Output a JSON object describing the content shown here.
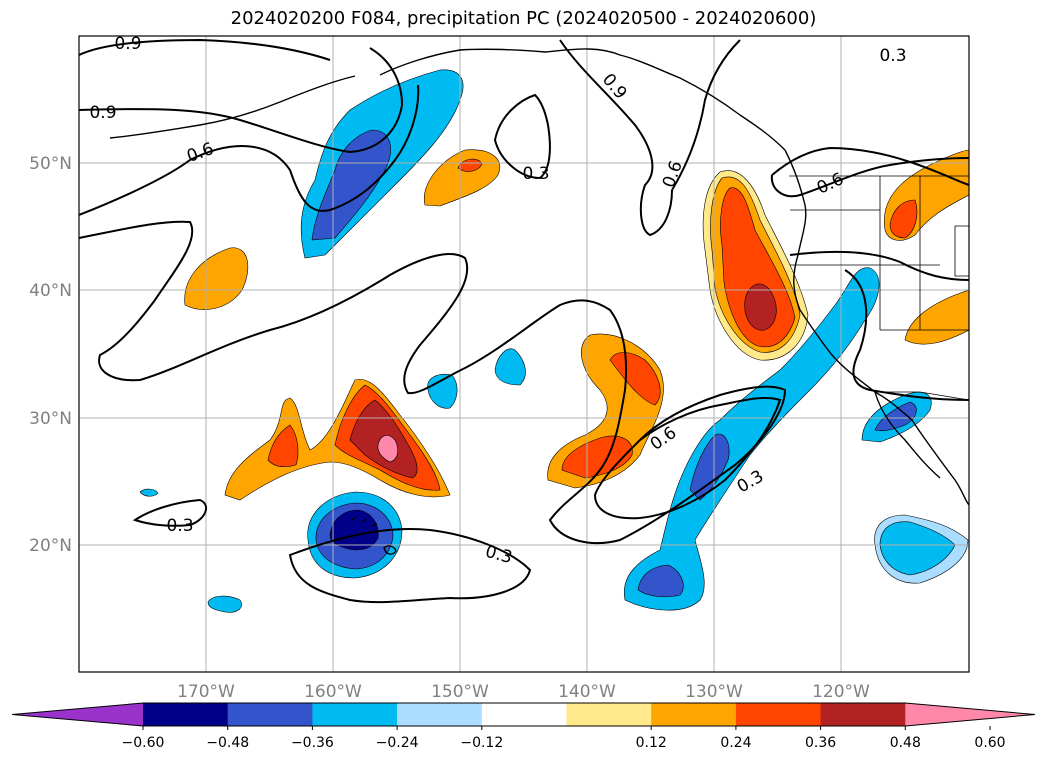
{
  "title": "2024020200 F084, precipitation PC (2024020500 - 2024020600)",
  "latitude_labels": [
    "50°N",
    "40°N",
    "30°N",
    "20°N"
  ],
  "longitude_labels": [
    "170°W",
    "160°W",
    "150°W",
    "140°W",
    "130°W",
    "120°W"
  ],
  "contour_labels": [
    "0.9",
    "0.9",
    "0.6",
    "0.9",
    "0.6",
    "0.3",
    "0.3",
    "0.6",
    "0.6",
    "0.3",
    "0.3",
    "0.3"
  ],
  "colorbar": {
    "ticks": [
      "−0.60",
      "−0.48",
      "−0.36",
      "−0.24",
      "−0.12",
      "0.12",
      "0.24",
      "0.36",
      "0.48",
      "0.60"
    ],
    "colors": [
      "#9933cc",
      "#000088",
      "#3355cc",
      "#00bbf2",
      "#aaddff",
      "#ffffff",
      "#ffe98a",
      "#ffa500",
      "#ff4500",
      "#b22222",
      "#ff88aa"
    ]
  }
}
